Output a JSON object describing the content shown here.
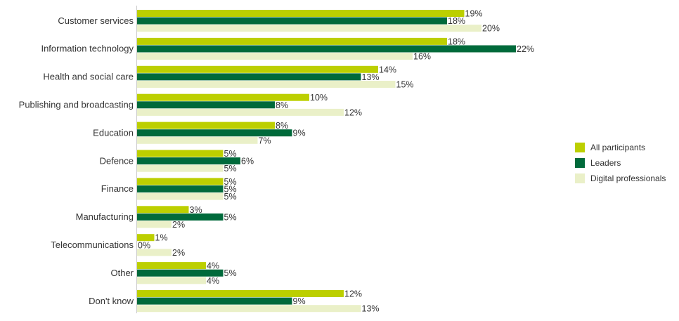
{
  "chart_data": {
    "type": "bar",
    "orientation": "horizontal",
    "categories": [
      "Customer services",
      "Information technology",
      "Health and social care",
      "Publishing and broadcasting",
      "Education",
      "Defence",
      "Finance",
      "Manufacturing",
      "Telecommunications",
      "Other",
      "Don't know"
    ],
    "series": [
      {
        "name": "All participants",
        "color": "#bccf00",
        "values": [
          19,
          18,
          14,
          10,
          8,
          5,
          5,
          3,
          1,
          4,
          12
        ]
      },
      {
        "name": "Leaders",
        "color": "#006a3b",
        "values": [
          18,
          22,
          13,
          8,
          9,
          6,
          5,
          5,
          0,
          5,
          9
        ]
      },
      {
        "name": "Digital professionals",
        "color": "#eaf0c8",
        "values": [
          20,
          16,
          15,
          12,
          7,
          5,
          5,
          2,
          2,
          4,
          13
        ]
      }
    ],
    "value_suffix": "%",
    "xlim": [
      0,
      22
    ],
    "legend_position": "right",
    "grid": false
  }
}
